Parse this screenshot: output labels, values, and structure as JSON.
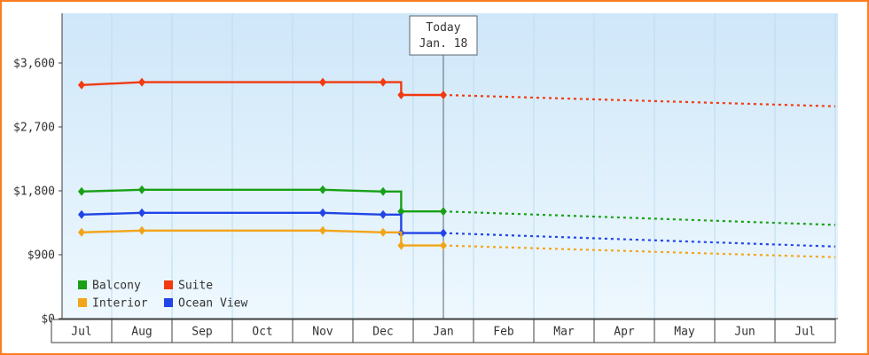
{
  "chart_data": {
    "type": "line",
    "x_categories": [
      "Jul",
      "Aug",
      "Sep",
      "Oct",
      "Nov",
      "Dec",
      "Jan",
      "Feb",
      "Mar",
      "Apr",
      "May",
      "Jun",
      "Jul"
    ],
    "y_axis": {
      "ticks": [
        {
          "value": 0,
          "label": "$0"
        },
        {
          "value": 900,
          "label": "$900"
        },
        {
          "value": 1800,
          "label": "$1,800"
        },
        {
          "value": 2700,
          "label": "$2,700"
        },
        {
          "value": 3600,
          "label": "$3,600"
        }
      ],
      "min": 0,
      "max": 3600
    },
    "today_marker": {
      "line1": "Today",
      "line2": "Jan. 18",
      "month_index": 6
    },
    "series": [
      {
        "name": "Suite",
        "color": "#f13a10",
        "history": [
          {
            "month": 0,
            "value": 3290,
            "marker": true
          },
          {
            "month": 1,
            "value": 3330,
            "marker": true
          },
          {
            "month": 4,
            "value": 3330,
            "marker": true
          },
          {
            "month": 5,
            "value": 3330,
            "marker": true
          },
          {
            "month": 5.3,
            "value": 3330,
            "marker": false
          },
          {
            "month": 5.3,
            "value": 3150,
            "marker": true
          },
          {
            "month": 6,
            "value": 3150,
            "marker": true
          }
        ],
        "forecast": [
          {
            "month": 6,
            "value": 3150
          },
          {
            "month": 12.5,
            "value": 2990
          }
        ]
      },
      {
        "name": "Balcony",
        "color": "#18a016",
        "history": [
          {
            "month": 0,
            "value": 1790,
            "marker": true
          },
          {
            "month": 1,
            "value": 1815,
            "marker": true
          },
          {
            "month": 4,
            "value": 1815,
            "marker": true
          },
          {
            "month": 5,
            "value": 1790,
            "marker": true
          },
          {
            "month": 5.3,
            "value": 1790,
            "marker": false
          },
          {
            "month": 5.3,
            "value": 1510,
            "marker": true
          },
          {
            "month": 6,
            "value": 1510,
            "marker": true
          }
        ],
        "forecast": [
          {
            "month": 6,
            "value": 1510
          },
          {
            "month": 12.5,
            "value": 1320
          }
        ]
      },
      {
        "name": "Ocean View",
        "color": "#2145e6",
        "history": [
          {
            "month": 0,
            "value": 1465,
            "marker": true
          },
          {
            "month": 1,
            "value": 1490,
            "marker": true
          },
          {
            "month": 4,
            "value": 1490,
            "marker": true
          },
          {
            "month": 5,
            "value": 1465,
            "marker": true
          },
          {
            "month": 5.3,
            "value": 1465,
            "marker": false
          },
          {
            "month": 5.3,
            "value": 1205,
            "marker": true
          },
          {
            "month": 6,
            "value": 1205,
            "marker": true
          }
        ],
        "forecast": [
          {
            "month": 6,
            "value": 1205
          },
          {
            "month": 12.5,
            "value": 1015
          }
        ]
      },
      {
        "name": "Interior",
        "color": "#f2a51a",
        "history": [
          {
            "month": 0,
            "value": 1215,
            "marker": true
          },
          {
            "month": 1,
            "value": 1240,
            "marker": true
          },
          {
            "month": 4,
            "value": 1240,
            "marker": true
          },
          {
            "month": 5,
            "value": 1215,
            "marker": true
          },
          {
            "month": 5.3,
            "value": 1215,
            "marker": false
          },
          {
            "month": 5.3,
            "value": 1030,
            "marker": true
          },
          {
            "month": 6,
            "value": 1030,
            "marker": true
          }
        ],
        "forecast": [
          {
            "month": 6,
            "value": 1030
          },
          {
            "month": 12.5,
            "value": 865
          }
        ]
      }
    ],
    "legend": [
      {
        "label": "Balcony",
        "color": "#18a016"
      },
      {
        "label": "Suite",
        "color": "#f13a10"
      },
      {
        "label": "Interior",
        "color": "#f2a51a"
      },
      {
        "label": "Ocean View",
        "color": "#2145e6"
      }
    ],
    "colors": {
      "frame_border": "#ff7d1f",
      "plot_top": "#cfe7f9",
      "plot_bottom": "#eef8fe",
      "axis": "#3c3c3c",
      "grid": "#bddcf0",
      "today_line": "#5a6672",
      "cell_border": "#3f3f3f",
      "cell_fill": "#ffffff"
    }
  }
}
